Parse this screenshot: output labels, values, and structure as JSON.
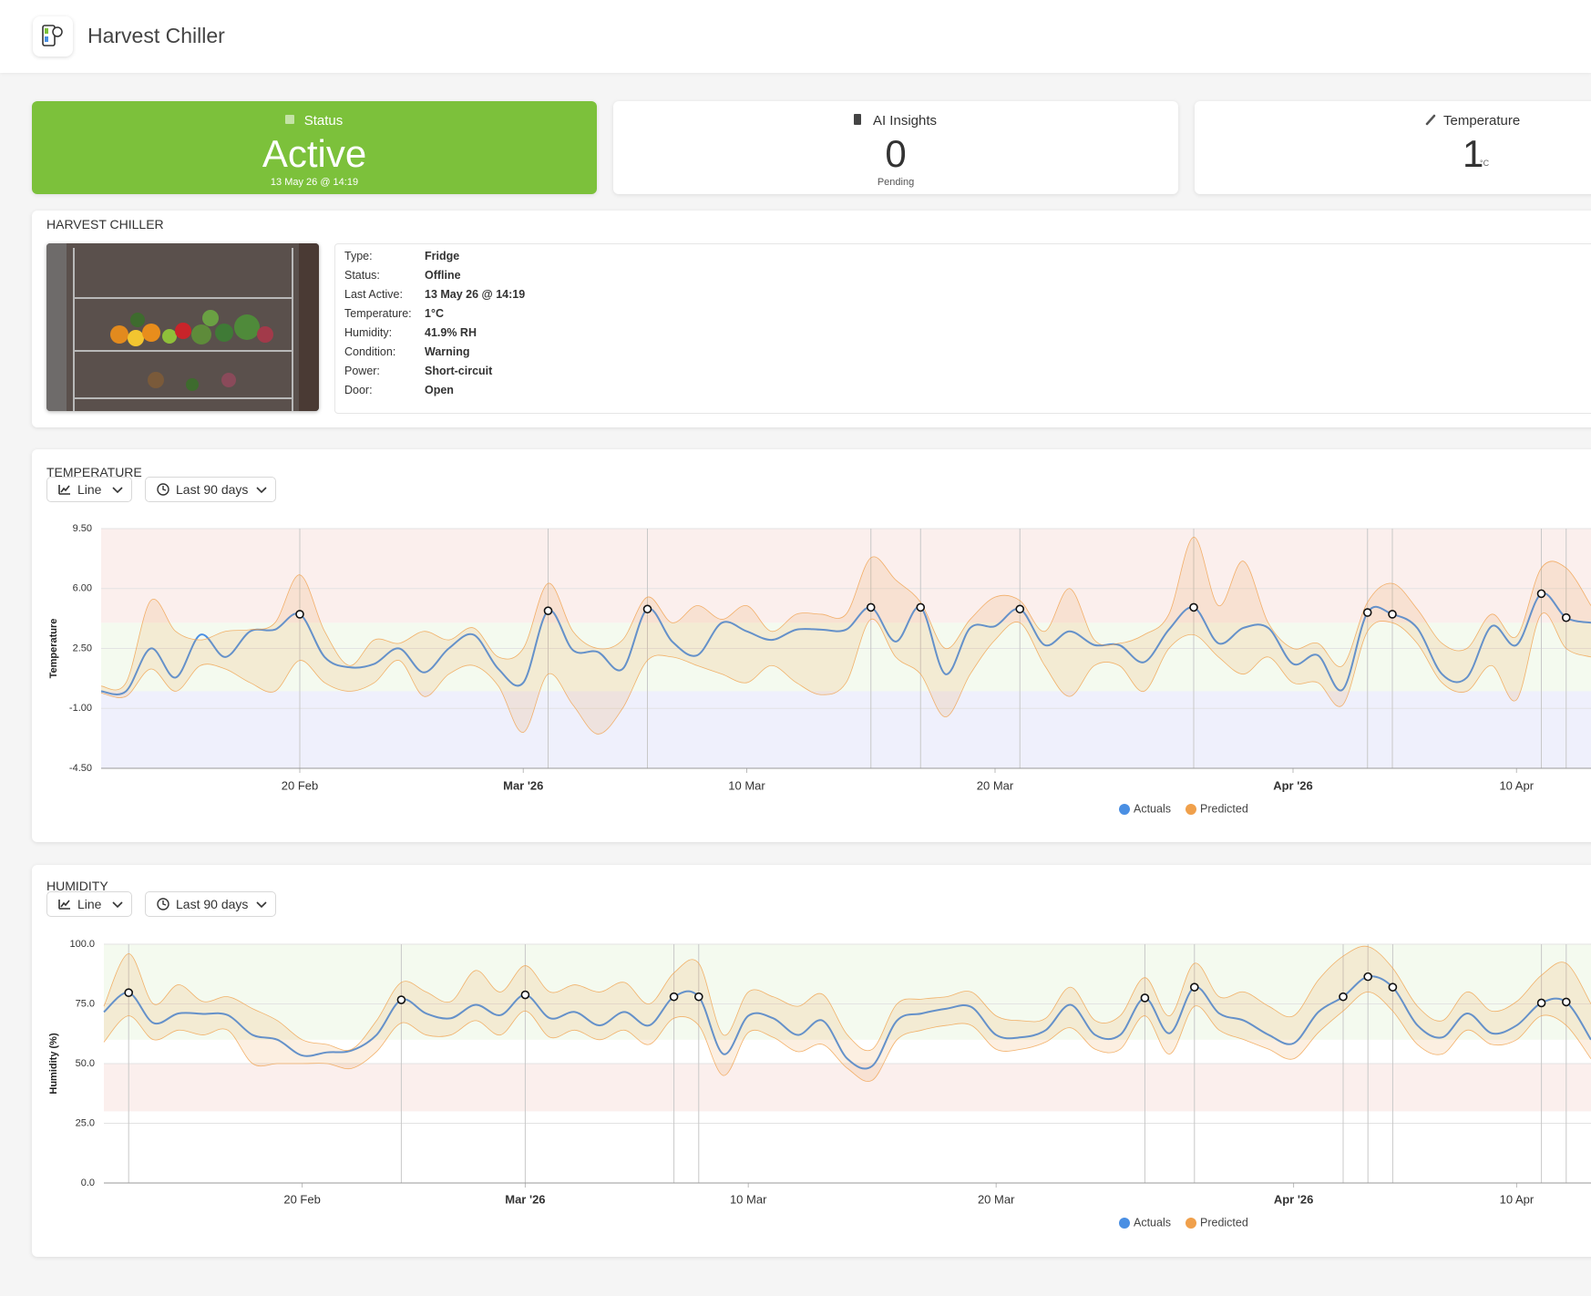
{
  "header": {
    "title": "Harvest Chiller"
  },
  "cards": [
    {
      "label": "Status",
      "value": "Active",
      "detail": "13 May 26 @ 14:19"
    },
    {
      "label": "AI Insights",
      "value": 0,
      "detail": "Pending"
    },
    {
      "label": "Temperature",
      "value": 1,
      "unit": "°C"
    }
  ],
  "details": {
    "title": "HARVEST CHILLER",
    "rows": [
      [
        "Type:",
        "Fridge"
      ],
      [
        "Status:",
        "Offline"
      ],
      [
        "Last Active:",
        "13 May 26 @ 14:19"
      ],
      [
        "Temperature:",
        "1°C"
      ],
      [
        "Humidity:",
        "41.9% RH"
      ],
      [
        "Condition:",
        "Warning"
      ],
      [
        "Power:",
        "Short-circuit"
      ],
      [
        "Door:",
        "Open"
      ]
    ]
  },
  "chart_data": [
    {
      "type": "line",
      "title": "TEMPERATURE",
      "controls": [
        "Line",
        "Last 90 days"
      ],
      "y_label": "Temperature",
      "x": [
        "2026-02-12",
        "2026-02-13",
        "2026-02-14",
        "2026-02-15",
        "2026-02-16",
        "2026-02-17",
        "2026-02-18",
        "2026-02-19",
        "2026-02-20",
        "2026-02-21",
        "2026-02-22",
        "2026-02-23",
        "2026-02-24",
        "2026-02-25",
        "2026-02-26",
        "2026-02-27",
        "2026-02-28",
        "2026-03-01",
        "2026-03-02",
        "2026-03-03",
        "2026-03-04",
        "2026-03-05",
        "2026-03-06",
        "2026-03-07",
        "2026-03-08",
        "2026-03-09",
        "2026-03-10",
        "2026-03-11",
        "2026-03-12",
        "2026-03-13",
        "2026-03-14",
        "2026-03-15",
        "2026-03-16",
        "2026-03-17",
        "2026-03-18",
        "2026-03-19",
        "2026-03-20",
        "2026-03-21",
        "2026-03-22",
        "2026-03-23",
        "2026-03-24",
        "2026-03-25",
        "2026-03-26",
        "2026-03-27",
        "2026-03-28",
        "2026-03-29",
        "2026-03-30",
        "2026-03-31",
        "2026-04-01",
        "2026-04-02",
        "2026-04-03",
        "2026-04-04",
        "2026-04-05",
        "2026-04-06",
        "2026-04-07",
        "2026-04-08",
        "2026-04-09",
        "2026-04-10",
        "2026-04-11",
        "2026-04-12",
        "2026-04-13"
      ],
      "series": [
        {
          "name": "Actuals",
          "color": "#4a8fe3",
          "values": [
            0,
            0,
            2.5,
            0.8,
            3.3,
            2,
            3.5,
            3.6,
            4.5,
            2,
            1.4,
            1.6,
            2.5,
            1.1,
            2.5,
            3.3,
            1.3,
            0.5,
            4.7,
            2.4,
            2.3,
            1.3,
            4.8,
            2.9,
            2.1,
            4,
            3.5,
            3,
            3.6,
            3.6,
            3.6,
            4.9,
            2.9,
            4.9,
            1,
            3.7,
            3.8,
            4.8,
            2.7,
            3.5,
            2.7,
            2.7,
            1.7,
            3.6,
            4.9,
            2.8,
            3.7,
            3.7,
            1.6,
            2.1,
            0.1,
            4.6,
            4.5,
            3.7,
            1,
            0.8,
            3.8,
            2.7,
            5.7,
            4.3,
            4
          ]
        },
        {
          "name": "Predicted",
          "color": "#f0a04b",
          "upper": [
            0.3,
            0.5,
            5.3,
            3.5,
            3,
            3.5,
            3.6,
            4,
            6.8,
            3.5,
            1.5,
            3,
            2.8,
            3.5,
            3,
            3.7,
            2,
            2.5,
            6.3,
            3.5,
            2.5,
            3,
            5.5,
            4,
            5,
            4.2,
            5,
            3.5,
            4.5,
            4.5,
            4.5,
            7.8,
            6.5,
            5.2,
            2.5,
            4.2,
            5.5,
            5.3,
            3.5,
            6,
            3,
            2.8,
            3.3,
            4.5,
            9,
            5,
            7.6,
            4,
            2.5,
            2.8,
            1.5,
            5.2,
            6.3,
            4.8,
            2.8,
            2.5,
            4.5,
            3.2,
            7.2,
            7.2,
            5
          ],
          "lower": [
            -0.1,
            -0.3,
            1.3,
            0,
            1.5,
            1.3,
            0.5,
            0,
            1.8,
            0.5,
            0,
            0.5,
            1.8,
            -0.3,
            1,
            1.5,
            0.3,
            -2.4,
            1,
            -0.8,
            -2.5,
            -1,
            1.8,
            2,
            1.5,
            1,
            0.5,
            1.5,
            0.5,
            -0.2,
            0.5,
            4.2,
            2,
            1,
            -1.5,
            1,
            3,
            4,
            1.5,
            -0.3,
            1.5,
            1.5,
            0,
            2.5,
            3.3,
            2,
            1,
            2,
            0.5,
            0.5,
            -0.8,
            3.5,
            4,
            2.8,
            0.5,
            0,
            1.5,
            -0.5,
            4.5,
            2.5,
            2
          ]
        }
      ],
      "anomaly_dates": [
        "2026-02-20",
        "2026-03-02",
        "2026-03-06",
        "2026-03-15",
        "2026-03-17",
        "2026-03-21",
        "2026-03-28",
        "2026-04-04",
        "2026-04-05",
        "2026-04-11",
        "2026-04-12"
      ],
      "zones": [
        {
          "from": 4,
          "to": 9.5,
          "color": "#fbefed"
        },
        {
          "from": 0,
          "to": 4,
          "color": "#f4faef"
        },
        {
          "from": -4.5,
          "to": 0,
          "color": "#eff0fc"
        }
      ],
      "xlim": [
        "2026-02-12",
        "2026-04-13"
      ],
      "xticks": [
        {
          "value": "2026-02-20",
          "label": "20 Feb"
        },
        {
          "value": "2026-03-01",
          "label": "Mar '26"
        },
        {
          "value": "2026-03-10",
          "label": "10 Mar"
        },
        {
          "value": "2026-03-20",
          "label": "20 Mar"
        },
        {
          "value": "2026-04-01",
          "label": "Apr '26"
        },
        {
          "value": "2026-04-10",
          "label": "10 Apr"
        }
      ],
      "ylim": [
        -4.5,
        9.5
      ],
      "yticks": [
        {
          "value": 9.5,
          "label": "9.50"
        },
        {
          "value": 6,
          "label": "6.00"
        },
        {
          "value": 2.5,
          "label": "2.50"
        },
        {
          "value": -1,
          "label": "-1.00"
        },
        {
          "value": -4.5,
          "label": "-4.50"
        }
      ],
      "grid": true
    },
    {
      "type": "line",
      "title": "HUMIDITY",
      "controls": [
        "Line",
        "Last 90 days"
      ],
      "y_label": "Humidity (%)",
      "x": [
        "2026-02-12",
        "2026-02-13",
        "2026-02-14",
        "2026-02-15",
        "2026-02-16",
        "2026-02-17",
        "2026-02-18",
        "2026-02-19",
        "2026-02-20",
        "2026-02-21",
        "2026-02-22",
        "2026-02-23",
        "2026-02-24",
        "2026-02-25",
        "2026-02-26",
        "2026-02-27",
        "2026-02-28",
        "2026-03-01",
        "2026-03-02",
        "2026-03-03",
        "2026-03-04",
        "2026-03-05",
        "2026-03-06",
        "2026-03-07",
        "2026-03-08",
        "2026-03-09",
        "2026-03-10",
        "2026-03-11",
        "2026-03-12",
        "2026-03-13",
        "2026-03-14",
        "2026-03-15",
        "2026-03-16",
        "2026-03-17",
        "2026-03-18",
        "2026-03-19",
        "2026-03-20",
        "2026-03-21",
        "2026-03-22",
        "2026-03-23",
        "2026-03-24",
        "2026-03-25",
        "2026-03-26",
        "2026-03-27",
        "2026-03-28",
        "2026-03-29",
        "2026-03-30",
        "2026-03-31",
        "2026-04-01",
        "2026-04-02",
        "2026-04-03",
        "2026-04-04",
        "2026-04-05",
        "2026-04-06",
        "2026-04-07",
        "2026-04-08",
        "2026-04-09",
        "2026-04-10",
        "2026-04-11",
        "2026-04-12",
        "2026-04-13"
      ],
      "series": [
        {
          "name": "Actuals",
          "color": "#4a8fe3",
          "values": [
            71.6,
            79.7,
            67,
            71,
            70.8,
            70.3,
            62,
            60,
            53.4,
            54.7,
            55.5,
            62,
            76.7,
            71,
            69,
            74.6,
            70.3,
            78.8,
            69,
            71.6,
            66,
            71.6,
            66,
            78,
            78,
            54,
            70,
            69,
            62,
            68,
            52,
            49,
            68,
            71,
            73,
            73.7,
            62,
            61,
            64,
            74.6,
            62,
            62,
            77.5,
            62.7,
            82,
            71,
            68,
            62,
            58.5,
            71.6,
            78,
            86.4,
            82,
            66,
            61,
            71,
            62.7,
            66,
            75.4,
            75.8,
            60
          ]
        },
        {
          "name": "Predicted",
          "color": "#f0a04b",
          "upper": [
            74,
            96,
            75,
            83,
            76,
            78,
            73,
            68,
            60,
            58,
            56,
            68,
            84,
            80,
            76,
            89,
            80,
            91,
            80,
            83,
            80,
            84,
            75,
            88,
            92,
            62,
            80,
            78,
            74,
            79,
            62,
            56,
            75,
            77,
            78,
            80,
            70,
            68,
            69,
            82,
            68,
            70,
            86,
            70,
            92,
            78,
            80,
            74,
            70,
            85,
            95,
            99,
            90,
            74,
            68,
            80,
            72,
            76,
            87,
            92,
            75
          ],
          "lower": [
            59,
            70,
            60,
            64,
            62,
            64,
            50,
            50,
            50,
            50,
            48,
            55,
            67,
            62,
            62,
            68,
            62,
            72,
            61,
            64,
            60,
            64,
            58,
            69,
            66,
            45,
            63,
            61,
            55,
            58,
            48,
            43,
            60,
            64,
            66,
            66,
            56,
            56,
            59,
            65,
            56,
            56,
            70,
            54,
            74,
            64,
            60,
            56,
            52,
            63,
            72,
            80,
            72,
            58,
            54,
            64,
            58,
            60,
            70,
            66,
            52
          ]
        }
      ],
      "anomaly_dates": [
        "2026-02-13",
        "2026-02-24",
        "2026-03-01",
        "2026-03-07",
        "2026-03-08",
        "2026-03-26",
        "2026-03-28",
        "2026-04-03",
        "2026-04-04",
        "2026-04-05",
        "2026-04-11",
        "2026-04-12"
      ],
      "zones": [
        {
          "from": 60,
          "to": 100,
          "color": "#f4faef"
        },
        {
          "from": 30,
          "to": 50,
          "color": "#fbefed"
        }
      ],
      "xlim": [
        "2026-02-12",
        "2026-04-13"
      ],
      "xticks": [
        {
          "value": "2026-02-20",
          "label": "20 Feb"
        },
        {
          "value": "2026-03-01",
          "label": "Mar '26"
        },
        {
          "value": "2026-03-10",
          "label": "10 Mar"
        },
        {
          "value": "2026-03-20",
          "label": "20 Mar"
        },
        {
          "value": "2026-04-01",
          "label": "Apr '26"
        },
        {
          "value": "2026-04-10",
          "label": "10 Apr"
        }
      ],
      "ylim": [
        0,
        100
      ],
      "yticks": [
        {
          "value": 100,
          "label": "100.0"
        },
        {
          "value": 75,
          "label": "75.0"
        },
        {
          "value": 50,
          "label": "50.0"
        },
        {
          "value": 25,
          "label": "25.0"
        },
        {
          "value": 0,
          "label": "0.0"
        }
      ],
      "grid": true
    }
  ]
}
